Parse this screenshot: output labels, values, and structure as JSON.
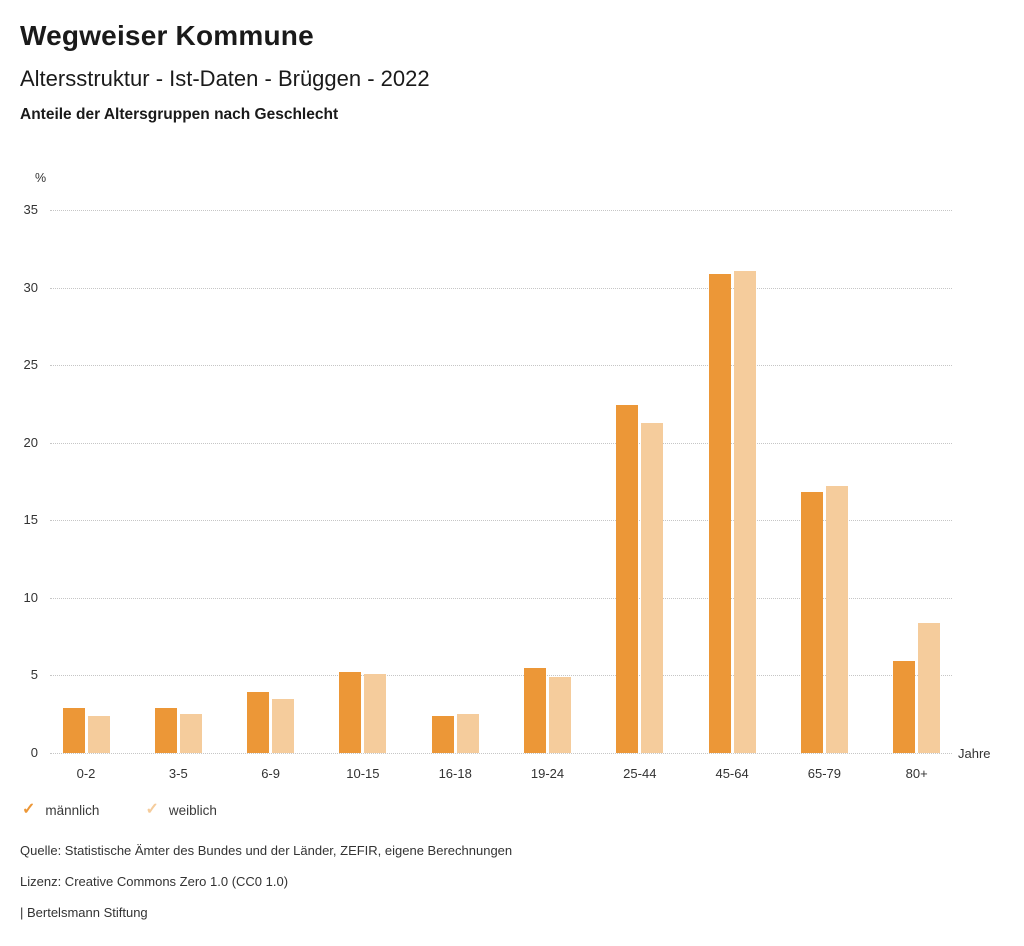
{
  "header": {
    "title": "Wegweiser Kommune",
    "subtitle": "Altersstruktur - Ist-Daten - Brüggen - 2022",
    "caption": "Anteile der Altersgruppen nach Geschlecht"
  },
  "chart_data": {
    "type": "bar",
    "title": "Anteile der Altersgruppen nach Geschlecht",
    "unit_label": "%",
    "xlabel": "Jahre",
    "ylabel": "%",
    "ylim": [
      0,
      35
    ],
    "yticks": [
      0,
      5,
      10,
      15,
      20,
      25,
      30,
      35
    ],
    "grid": "horizontal-dotted",
    "legend_position": "bottom-left",
    "categories": [
      "0-2",
      "3-5",
      "6-9",
      "10-15",
      "16-18",
      "19-24",
      "25-44",
      "45-64",
      "65-79",
      "80+"
    ],
    "series": [
      {
        "name": "männlich",
        "color": "#EC9737",
        "values": [
          2.9,
          2.9,
          3.9,
          5.2,
          2.4,
          5.5,
          22.4,
          30.9,
          16.8,
          5.9
        ]
      },
      {
        "name": "weiblich",
        "color": "#F5CC9C",
        "values": [
          2.4,
          2.5,
          3.5,
          5.1,
          2.5,
          4.9,
          21.3,
          31.1,
          17.2,
          8.4
        ]
      }
    ]
  },
  "legend": {
    "check_icon": "✓",
    "items": [
      {
        "label": "männlich",
        "color": "#EC9737"
      },
      {
        "label": "weiblich",
        "color": "#F5CC9C"
      }
    ]
  },
  "footer": {
    "source": "Quelle: Statistische Ämter des Bundes und der Länder, ZEFIR, eigene Berechnungen",
    "license": "Lizenz: Creative Commons Zero 1.0 (CC0 1.0)",
    "attribution": "| Bertelsmann Stiftung"
  },
  "colors": {
    "maennlich": "#EC9737",
    "weiblich": "#F5CC9C",
    "gridline": "#c6c6c6",
    "text": "#1a1a1a"
  }
}
